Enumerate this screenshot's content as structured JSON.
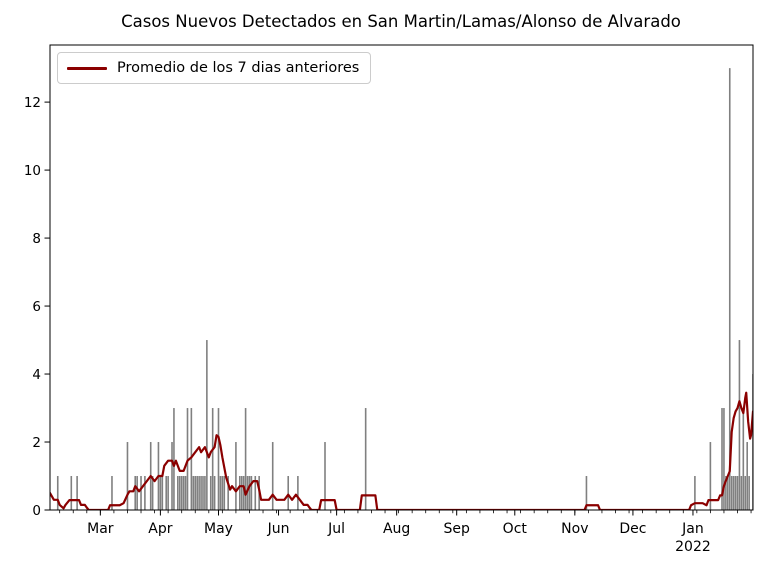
{
  "chart_data": {
    "type": "bar",
    "title": "Casos Nuevos Detectados en San Martin/Lamas/Alonso de Alvarado",
    "xlabel": "",
    "ylabel": "",
    "grid": false,
    "legend": {
      "position": "upper left",
      "entries": [
        {
          "label": "Promedio de los 7 dias anteriores",
          "type": "line",
          "color": "#8b0000"
        }
      ]
    },
    "colors": {
      "bar": "#808080",
      "line": "#8b0000",
      "axis": "#000000",
      "tick_label": "#000000",
      "background": "#ffffff",
      "legend_border": "#cccccc"
    },
    "ylim": [
      0,
      13.68
    ],
    "yticks": [
      0,
      2,
      4,
      6,
      8,
      10,
      12
    ],
    "x_domain_days": [
      0,
      363
    ],
    "month_ticks": [
      {
        "label": "Mar",
        "day": 26
      },
      {
        "label": "Apr",
        "day": 57
      },
      {
        "label": "May",
        "day": 87
      },
      {
        "label": "Jun",
        "day": 118
      },
      {
        "label": "Jul",
        "day": 148
      },
      {
        "label": "Aug",
        "day": 179
      },
      {
        "label": "Sep",
        "day": 210
      },
      {
        "label": "Oct",
        "day": 240
      },
      {
        "label": "Nov",
        "day": 271
      },
      {
        "label": "Dec",
        "day": 301
      },
      {
        "label": "Jan",
        "day": 332
      }
    ],
    "year_label": {
      "label": "2022",
      "day": 332
    },
    "minor_ticks": {
      "start_day": 5,
      "step_days": 7
    },
    "series": [
      {
        "name": "casos-nuevos-diarios",
        "type": "bar",
        "points": [
          [
            4,
            1
          ],
          [
            11,
            1
          ],
          [
            14,
            1
          ],
          [
            32,
            1
          ],
          [
            40,
            2
          ],
          [
            44,
            1
          ],
          [
            45,
            1
          ],
          [
            47,
            1
          ],
          [
            49,
            1
          ],
          [
            52,
            2
          ],
          [
            53,
            1
          ],
          [
            56,
            2
          ],
          [
            57,
            1
          ],
          [
            58,
            1
          ],
          [
            60,
            1
          ],
          [
            61,
            1
          ],
          [
            63,
            2
          ],
          [
            64,
            3
          ],
          [
            66,
            1
          ],
          [
            67,
            1
          ],
          [
            68,
            1
          ],
          [
            69,
            1
          ],
          [
            70,
            1
          ],
          [
            71,
            3
          ],
          [
            73,
            3
          ],
          [
            74,
            1
          ],
          [
            75,
            1
          ],
          [
            76,
            1
          ],
          [
            77,
            1
          ],
          [
            78,
            1
          ],
          [
            79,
            1
          ],
          [
            80,
            1
          ],
          [
            81,
            5
          ],
          [
            83,
            1
          ],
          [
            84,
            3
          ],
          [
            85,
            1
          ],
          [
            87,
            3
          ],
          [
            88,
            1
          ],
          [
            89,
            1
          ],
          [
            90,
            1
          ],
          [
            92,
            1
          ],
          [
            96,
            2
          ],
          [
            98,
            1
          ],
          [
            99,
            1
          ],
          [
            100,
            1
          ],
          [
            101,
            3
          ],
          [
            102,
            1
          ],
          [
            103,
            1
          ],
          [
            104,
            1
          ],
          [
            106,
            1
          ],
          [
            108,
            1
          ],
          [
            115,
            2
          ],
          [
            123,
            1
          ],
          [
            128,
            1
          ],
          [
            142,
            2
          ],
          [
            163,
            3
          ],
          [
            277,
            1
          ],
          [
            333,
            1
          ],
          [
            341,
            2
          ],
          [
            347,
            3
          ],
          [
            348,
            3
          ],
          [
            349,
            1
          ],
          [
            350,
            1
          ],
          [
            351,
            13
          ],
          [
            352,
            1
          ],
          [
            353,
            1
          ],
          [
            354,
            1
          ],
          [
            355,
            1
          ],
          [
            356,
            5
          ],
          [
            357,
            1
          ],
          [
            358,
            3
          ],
          [
            359,
            1
          ],
          [
            360,
            2
          ],
          [
            361,
            1
          ],
          [
            363,
            4
          ]
        ]
      },
      {
        "name": "promedio-7-dias",
        "type": "line",
        "label": "Promedio de los 7 dias anteriores",
        "points": [
          [
            0,
            0.5
          ],
          [
            1,
            0.4
          ],
          [
            2,
            0.3
          ],
          [
            4,
            0.3
          ],
          [
            5,
            0.15
          ],
          [
            7,
            0.05
          ],
          [
            8,
            0.15
          ],
          [
            10,
            0.29
          ],
          [
            15,
            0.29
          ],
          [
            16,
            0.15
          ],
          [
            18,
            0.15
          ],
          [
            19,
            0.07
          ],
          [
            20,
            0
          ],
          [
            30,
            0
          ],
          [
            31,
            0.14
          ],
          [
            36,
            0.14
          ],
          [
            38,
            0.2
          ],
          [
            40,
            0.45
          ],
          [
            41,
            0.55
          ],
          [
            43,
            0.55
          ],
          [
            44,
            0.7
          ],
          [
            46,
            0.55
          ],
          [
            48,
            0.7
          ],
          [
            50,
            0.85
          ],
          [
            52,
            1.0
          ],
          [
            54,
            0.85
          ],
          [
            56,
            1.0
          ],
          [
            58,
            1.0
          ],
          [
            59,
            1.3
          ],
          [
            61,
            1.45
          ],
          [
            63,
            1.45
          ],
          [
            64,
            1.3
          ],
          [
            65,
            1.45
          ],
          [
            67,
            1.15
          ],
          [
            69,
            1.15
          ],
          [
            71,
            1.45
          ],
          [
            73,
            1.55
          ],
          [
            75,
            1.7
          ],
          [
            77,
            1.85
          ],
          [
            78,
            1.7
          ],
          [
            80,
            1.85
          ],
          [
            82,
            1.55
          ],
          [
            83,
            1.7
          ],
          [
            85,
            1.85
          ],
          [
            86,
            2.2
          ],
          [
            87,
            2.15
          ],
          [
            88,
            1.9
          ],
          [
            89,
            1.55
          ],
          [
            91,
            0.95
          ],
          [
            93,
            0.6
          ],
          [
            94,
            0.7
          ],
          [
            96,
            0.55
          ],
          [
            98,
            0.7
          ],
          [
            100,
            0.7
          ],
          [
            101,
            0.45
          ],
          [
            103,
            0.7
          ],
          [
            105,
            0.85
          ],
          [
            107,
            0.85
          ],
          [
            108,
            0.6
          ],
          [
            109,
            0.3
          ],
          [
            113,
            0.3
          ],
          [
            115,
            0.45
          ],
          [
            117,
            0.3
          ],
          [
            121,
            0.3
          ],
          [
            123,
            0.45
          ],
          [
            125,
            0.3
          ],
          [
            127,
            0.45
          ],
          [
            129,
            0.3
          ],
          [
            131,
            0.15
          ],
          [
            133,
            0.15
          ],
          [
            134,
            0.07
          ],
          [
            135,
            0
          ],
          [
            139,
            0
          ],
          [
            140,
            0.29
          ],
          [
            147,
            0.29
          ],
          [
            148,
            0
          ],
          [
            160,
            0
          ],
          [
            161,
            0.43
          ],
          [
            168,
            0.43
          ],
          [
            169,
            0
          ],
          [
            276,
            0
          ],
          [
            277,
            0.14
          ],
          [
            283,
            0.14
          ],
          [
            284,
            0
          ],
          [
            330,
            0
          ],
          [
            331,
            0.14
          ],
          [
            333,
            0.2
          ],
          [
            337,
            0.2
          ],
          [
            339,
            0.14
          ],
          [
            340,
            0.29
          ],
          [
            345,
            0.29
          ],
          [
            346,
            0.43
          ],
          [
            347,
            0.43
          ],
          [
            348,
            0.71
          ],
          [
            349,
            0.86
          ],
          [
            350,
            1.0
          ],
          [
            351,
            1.14
          ],
          [
            352,
            2.3
          ],
          [
            353,
            2.7
          ],
          [
            354,
            2.9
          ],
          [
            355,
            3.0
          ],
          [
            356,
            3.2
          ],
          [
            357,
            3.0
          ],
          [
            358,
            2.85
          ],
          [
            359,
            3.3
          ],
          [
            359.5,
            3.45
          ],
          [
            360.5,
            2.6
          ],
          [
            361.5,
            2.1
          ],
          [
            362,
            2.2
          ],
          [
            363,
            2.9
          ]
        ]
      }
    ]
  }
}
